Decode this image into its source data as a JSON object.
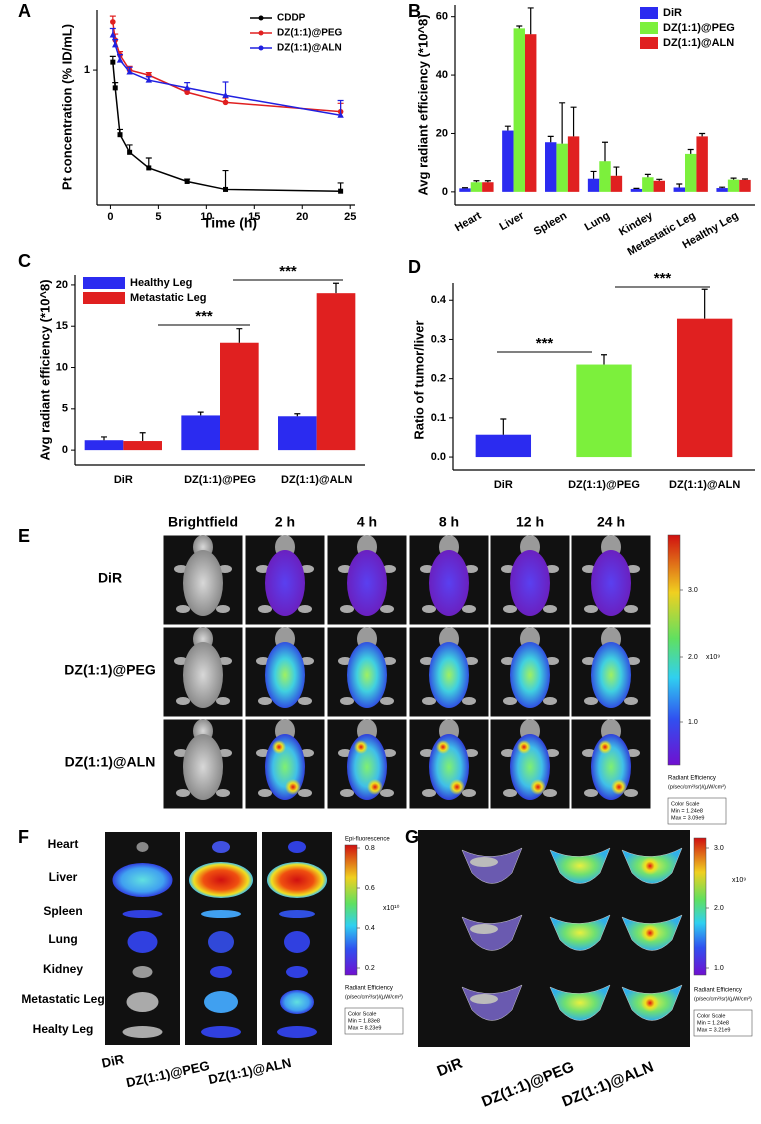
{
  "chart_data": [
    {
      "label": "A",
      "type": "line",
      "x_label": "Time (h)",
      "y_label": "Pt concentration (% ID/mL)",
      "x": [
        0.25,
        0.5,
        1,
        2,
        4,
        8,
        12,
        24
      ],
      "series": [
        {
          "name": "CDDP",
          "color": "#000000",
          "marker": "square",
          "values": [
            1.18,
            0.69,
            0.26,
            0.18,
            0.13,
            0.098,
            0.083,
            0.08
          ],
          "errors": [
            0.15,
            0.08,
            0.03,
            0.03,
            0.03,
            0.005,
            0.04,
            0.015
          ]
        },
        {
          "name": "DZ(1:1)@PEG",
          "color": "#e02020",
          "marker": "circle",
          "values": [
            2.73,
            1.87,
            1.37,
            1.0,
            0.9,
            0.63,
            0.51,
            0.42
          ],
          "errors": [
            0.35,
            0.25,
            0.1,
            0.08,
            0.05,
            0.03,
            0.05,
            0.08
          ]
        },
        {
          "name": "DZ(1:1)@ALN",
          "color": "#2020e0",
          "marker": "triangle",
          "values": [
            2.08,
            1.69,
            1.23,
            0.96,
            0.81,
            0.69,
            0.59,
            0.39
          ],
          "errors": [
            0.3,
            0.2,
            0.15,
            0.1,
            0.06,
            0.08,
            0.19,
            0.14
          ]
        }
      ],
      "xlim": [
        -1.4,
        25.5
      ],
      "xticks": [
        0,
        5,
        10,
        15,
        20,
        25
      ],
      "ylim": [
        0.06,
        3.5
      ],
      "yticks": [
        1
      ],
      "log_y": true,
      "legend": "upper right"
    },
    {
      "label": "B",
      "type": "bar",
      "y_label": "Avg radiant efficiency (*10^8)",
      "categories": [
        "Heart",
        "Liver",
        "Spleen",
        "Lung",
        "Kindey",
        "Metastatic Leg",
        "Healthy Leg"
      ],
      "series": [
        {
          "name": "DiR",
          "color": "#2b2bf0",
          "values": [
            1.2,
            21,
            17,
            4.5,
            1,
            1.5,
            1.3
          ],
          "errors": [
            0.2,
            1.5,
            2,
            2.5,
            0.2,
            1.2,
            0.3
          ]
        },
        {
          "name": "DZ(1:1)@PEG",
          "color": "#7cf03c",
          "values": [
            3.3,
            56,
            16.5,
            10.5,
            5,
            13,
            4.2
          ],
          "errors": [
            0.5,
            0.8,
            14,
            6.5,
            1,
            1.5,
            0.5
          ]
        },
        {
          "name": "DZ(1:1)@ALN",
          "color": "#e02020",
          "values": [
            3.3,
            54,
            19,
            5.5,
            3.8,
            19,
            4.1
          ],
          "errors": [
            0.5,
            9,
            10,
            3,
            0.5,
            1,
            0.3
          ]
        }
      ],
      "ylim": [
        -4.5,
        64
      ],
      "yticks": [
        0,
        20,
        40,
        60
      ],
      "legend": "upper right"
    },
    {
      "label": "C",
      "type": "bar",
      "y_label": "Avg radiant efficiency (*10^8)",
      "categories": [
        "DiR",
        "DZ(1:1)@PEG",
        "DZ(1:1)@ALN"
      ],
      "series": [
        {
          "name": "Healthy Leg",
          "color": "#2b2bf0",
          "values": [
            1.2,
            4.2,
            4.1
          ],
          "errors": [
            0.4,
            0.4,
            0.3
          ]
        },
        {
          "name": "Metastatic Leg",
          "color": "#e02020",
          "values": [
            1.1,
            13,
            19
          ],
          "errors": [
            1,
            1.7,
            1.2
          ]
        }
      ],
      "ylim": [
        -1.8,
        21.2
      ],
      "yticks": [
        0,
        5,
        10,
        15,
        20
      ],
      "legend": "upper left",
      "annotations": [
        "***",
        "***"
      ]
    },
    {
      "label": "D",
      "type": "bar",
      "y_label": "Ratio of tumor/liver",
      "categories": [
        "DiR",
        "DZ(1:1)@PEG",
        "DZ(1:1)@ALN"
      ],
      "values": [
        0.057,
        0.236,
        0.353
      ],
      "errors": [
        0.04,
        0.025,
        0.075
      ],
      "colors": [
        "#2b2bf0",
        "#7cf03c",
        "#e02020"
      ],
      "ylim": [
        -0.033,
        0.444
      ],
      "yticks": [
        {
          "value": 0,
          "label": "0.0"
        },
        0.1,
        0.2,
        0.3,
        0.4
      ],
      "annotations": [
        "***",
        "***"
      ]
    }
  ],
  "figure_panels": {
    "E": {
      "label": "E",
      "column_headers": [
        "Brightfield",
        "2 h",
        "4 h",
        "8 h",
        "12 h",
        "24 h"
      ],
      "row_labels": [
        "DiR",
        "DZ(1:1)@PEG",
        "DZ(1:1)@ALN"
      ],
      "colorbar": {
        "ticks": [
          "3.0",
          "2.0",
          "1.0"
        ],
        "unit": "x10⁹",
        "title": "Radiant Efficiency",
        "units": "(p/sec/cm²/sr)/(µW/cm²)",
        "scale_title": "Color Scale",
        "min": "Min = 1.24e8",
        "max": "Max = 3.09e9"
      }
    },
    "F": {
      "label": "F",
      "row_labels": [
        "Heart",
        "Liver",
        "Spleen",
        "Lung",
        "Kidney",
        "Metastatic Leg",
        "Healty Leg"
      ],
      "column_labels": [
        "DiR",
        "DZ(1:1)@PEG",
        "DZ(1:1)@ALN"
      ],
      "colorbar": {
        "header": "Epi-fluorescence",
        "ticks": [
          "0.8",
          "0.6",
          "0.4",
          "0.2"
        ],
        "unit": "x10¹⁰",
        "title": "Radiant Efficiency",
        "units": "(p/sec/cm²/sr)/(µW/cm²)",
        "scale_title": "Color Scale",
        "min": "Min = 1.83e8",
        "max": "Max = 8.23e9"
      }
    },
    "G": {
      "label": "G",
      "column_labels": [
        "DiR",
        "DZ(1:1)@PEG",
        "DZ(1:1)@ALN"
      ],
      "colorbar": {
        "ticks": [
          "3.0",
          "2.0",
          "1.0"
        ],
        "unit": "x10⁹",
        "title": "Radiant Efficiency",
        "units": "(p/sec/cm²/sr)/(µW/cm²)",
        "scale_title": "Color Scale",
        "min": "Min = 1.24e8",
        "max": "Max = 3.21e9"
      }
    }
  }
}
